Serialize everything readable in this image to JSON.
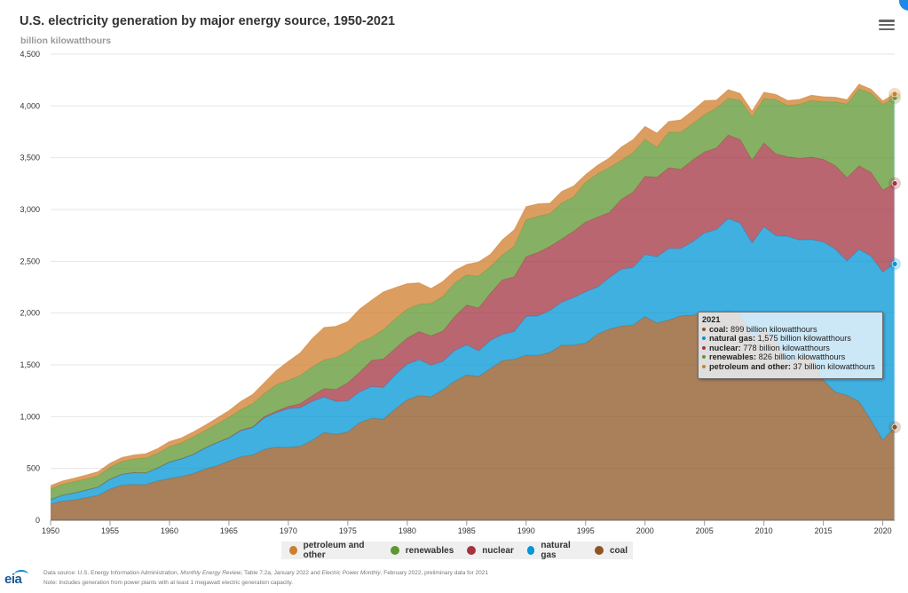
{
  "header": {
    "title": "U.S. electricity generation by major energy source, 1950-2021",
    "unit_label": "billion kilowatthours",
    "menu_icon": "hamburger-menu-icon"
  },
  "tooltip": {
    "year": "2021",
    "rows": [
      {
        "name": "coal",
        "label": "coal:",
        "value": "899 billion kilowatthours",
        "color": "#8c5523"
      },
      {
        "name": "natural-gas",
        "label": "natural gas:",
        "value": "1,575 billion kilowatthours",
        "color": "#0096d7"
      },
      {
        "name": "nuclear",
        "label": "nuclear:",
        "value": "778 billion kilowatthours",
        "color": "#a33340"
      },
      {
        "name": "renewables",
        "label": "renewables:",
        "value": "826 billion kilowatthours",
        "color": "#5d9732"
      },
      {
        "name": "petroleum",
        "label": "petroleum and other:",
        "value": "37 billion kilowatthours",
        "color": "#cf7e2b"
      }
    ]
  },
  "legend": [
    {
      "label": "petroleum and other",
      "color": "#cf7e2b"
    },
    {
      "label": "renewables",
      "color": "#5d9732"
    },
    {
      "label": "nuclear",
      "color": "#a33340"
    },
    {
      "label": "natural gas",
      "color": "#0096d7"
    },
    {
      "label": "coal",
      "color": "#8c5523"
    }
  ],
  "footer": {
    "logo": "eia",
    "source_prefix": "Data source: U.S. Energy Information Administration, ",
    "source_pub1": "Monthly Energy Review",
    "source_mid": ", Table 7.2a, January 2022 and ",
    "source_pub2": "Electric Power Monthly",
    "source_suffix": ", February 2022, preliminary data for 2021",
    "note": "Note: Includes generation from power plants with at least 1 megawatt electric generation capacity."
  },
  "chart_data": {
    "type": "area",
    "stacked": true,
    "title": "U.S. electricity generation by major energy source, 1950-2021",
    "xlabel": "",
    "ylabel": "billion kilowatthours",
    "xlim": [
      1950,
      2021
    ],
    "ylim": [
      0,
      4500
    ],
    "xticks": [
      1950,
      1955,
      1960,
      1965,
      1970,
      1975,
      1980,
      1985,
      1990,
      1995,
      2000,
      2005,
      2010,
      2015,
      2020
    ],
    "yticks": [
      0,
      500,
      1000,
      1500,
      2000,
      2500,
      3000,
      3500,
      4000,
      4500
    ],
    "ytick_labels": [
      "0",
      "500",
      "1,000",
      "1,500",
      "2,000",
      "2,500",
      "3,000",
      "3,500",
      "4,000",
      "4,500"
    ],
    "grid": true,
    "legend_position": "bottom",
    "x": [
      1950,
      1951,
      1952,
      1953,
      1954,
      1955,
      1956,
      1957,
      1958,
      1959,
      1960,
      1961,
      1962,
      1963,
      1964,
      1965,
      1966,
      1967,
      1968,
      1969,
      1970,
      1971,
      1972,
      1973,
      1974,
      1975,
      1976,
      1977,
      1978,
      1979,
      1980,
      1981,
      1982,
      1983,
      1984,
      1985,
      1986,
      1987,
      1988,
      1989,
      1990,
      1991,
      1992,
      1993,
      1994,
      1995,
      1996,
      1997,
      1998,
      1999,
      2000,
      2001,
      2002,
      2003,
      2004,
      2005,
      2006,
      2007,
      2008,
      2009,
      2010,
      2011,
      2012,
      2013,
      2014,
      2015,
      2016,
      2017,
      2018,
      2019,
      2020,
      2021
    ],
    "series": [
      {
        "name": "coal",
        "color": "#8c5523",
        "values": [
          155,
          185,
          195,
          219,
          239,
          301,
          339,
          346,
          344,
          378,
          403,
          422,
          450,
          494,
          526,
          571,
          613,
          630,
          685,
          706,
          704,
          713,
          771,
          848,
          828,
          853,
          944,
          985,
          976,
          1075,
          1162,
          1203,
          1192,
          1259,
          1342,
          1402,
          1386,
          1464,
          1541,
          1554,
          1594,
          1591,
          1621,
          1690,
          1691,
          1709,
          1796,
          1845,
          1874,
          1884,
          1966,
          1904,
          1933,
          1974,
          1978,
          2013,
          1991,
          2016,
          1986,
          1756,
          1847,
          1733,
          1514,
          1581,
          1582,
          1352,
          1239,
          1206,
          1146,
          965,
          773,
          899
        ]
      },
      {
        "name": "natural gas",
        "color": "#0096d7",
        "values": [
          45,
          57,
          68,
          72,
          81,
          95,
          104,
          113,
          111,
          125,
          158,
          169,
          184,
          202,
          222,
          222,
          251,
          264,
          304,
          333,
          373,
          374,
          376,
          341,
          320,
          300,
          295,
          306,
          305,
          329,
          346,
          346,
          305,
          274,
          297,
          292,
          249,
          273,
          253,
          267,
          373,
          381,
          404,
          415,
          460,
          496,
          455,
          497,
          549,
          556,
          601,
          639,
          691,
          650,
          710,
          761,
          816,
          897,
          883,
          921,
          988,
          1014,
          1226,
          1124,
          1127,
          1335,
          1379,
          1297,
          1469,
          1586,
          1624,
          1575
        ]
      },
      {
        "name": "nuclear",
        "color": "#a33340",
        "values": [
          0,
          0,
          0,
          0,
          0,
          0,
          0,
          1,
          1,
          1,
          1,
          2,
          2,
          3,
          3,
          4,
          6,
          8,
          13,
          14,
          22,
          38,
          54,
          83,
          114,
          173,
          191,
          251,
          276,
          255,
          251,
          273,
          283,
          294,
          328,
          384,
          414,
          455,
          527,
          529,
          577,
          613,
          619,
          610,
          640,
          673,
          675,
          629,
          674,
          728,
          754,
          769,
          780,
          764,
          789,
          782,
          787,
          806,
          806,
          799,
          807,
          790,
          769,
          789,
          797,
          797,
          806,
          805,
          807,
          809,
          790,
          778
        ]
      },
      {
        "name": "renewables",
        "color": "#5d9732",
        "values": [
          100,
          104,
          110,
          107,
          109,
          116,
          124,
          131,
          144,
          140,
          149,
          153,
          168,
          166,
          179,
          196,
          198,
          224,
          224,
          256,
          251,
          272,
          278,
          275,
          309,
          303,
          289,
          223,
          283,
          283,
          279,
          264,
          311,
          335,
          323,
          291,
          307,
          258,
          238,
          296,
          357,
          350,
          316,
          348,
          331,
          384,
          419,
          433,
          376,
          380,
          356,
          289,
          343,
          356,
          351,
          358,
          385,
          353,
          381,
          418,
          428,
          524,
          494,
          522,
          546,
          557,
          614,
          711,
          742,
          764,
          826,
          826
        ]
      },
      {
        "name": "petroleum and other",
        "color": "#cf7e2b",
        "values": [
          34,
          33,
          33,
          38,
          40,
          38,
          38,
          39,
          42,
          47,
          48,
          49,
          48,
          52,
          57,
          65,
          79,
          89,
          104,
          138,
          184,
          220,
          274,
          314,
          301,
          289,
          320,
          358,
          365,
          304,
          246,
          206,
          146,
          144,
          120,
          100,
          137,
          118,
          149,
          158,
          127,
          120,
          101,
          112,
          105,
          75,
          81,
          93,
          129,
          127,
          125,
          137,
          103,
          121,
          125,
          137,
          77,
          85,
          64,
          55,
          62,
          51,
          49,
          47,
          52,
          48,
          46,
          42,
          45,
          38,
          36,
          37
        ]
      }
    ]
  }
}
